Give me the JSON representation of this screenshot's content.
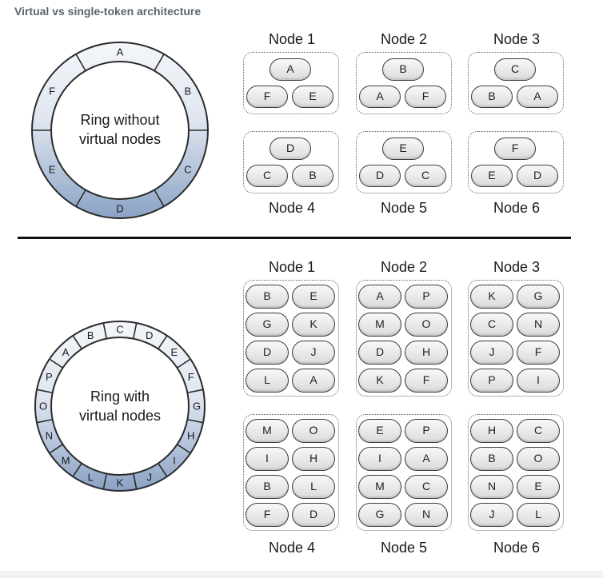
{
  "title": "Virtual vs single-token architecture",
  "top": {
    "ring": {
      "label_line1": "Ring without",
      "label_line2": "virtual nodes",
      "segments": [
        "A",
        "B",
        "C",
        "D",
        "E",
        "F"
      ]
    },
    "nodes": [
      {
        "label": "Node 1",
        "top": "A",
        "left": "F",
        "right": "E"
      },
      {
        "label": "Node 2",
        "top": "B",
        "left": "A",
        "right": "F"
      },
      {
        "label": "Node 3",
        "top": "C",
        "left": "B",
        "right": "A"
      },
      {
        "label": "Node 4",
        "top": "D",
        "left": "C",
        "right": "B"
      },
      {
        "label": "Node 5",
        "top": "E",
        "left": "D",
        "right": "C"
      },
      {
        "label": "Node 6",
        "top": "F",
        "left": "E",
        "right": "D"
      }
    ]
  },
  "bottom": {
    "ring": {
      "label_line1": "Ring with",
      "label_line2": "virtual nodes",
      "segments": [
        "A",
        "B",
        "C",
        "D",
        "E",
        "F",
        "G",
        "H",
        "I",
        "J",
        "K",
        "L",
        "M",
        "N",
        "O",
        "P"
      ]
    },
    "nodes": [
      {
        "label": "Node 1",
        "tokens": [
          [
            "B",
            "E"
          ],
          [
            "G",
            "K"
          ],
          [
            "D",
            "J"
          ],
          [
            "L",
            "A"
          ]
        ]
      },
      {
        "label": "Node 2",
        "tokens": [
          [
            "A",
            "P"
          ],
          [
            "M",
            "O"
          ],
          [
            "D",
            "H"
          ],
          [
            "K",
            "F"
          ]
        ]
      },
      {
        "label": "Node 3",
        "tokens": [
          [
            "K",
            "G"
          ],
          [
            "C",
            "N"
          ],
          [
            "J",
            "F"
          ],
          [
            "P",
            "I"
          ]
        ]
      },
      {
        "label": "Node 4",
        "tokens": [
          [
            "M",
            "O"
          ],
          [
            "I",
            "H"
          ],
          [
            "B",
            "L"
          ],
          [
            "F",
            "D"
          ]
        ]
      },
      {
        "label": "Node 5",
        "tokens": [
          [
            "E",
            "P"
          ],
          [
            "I",
            "A"
          ],
          [
            "M",
            "C"
          ],
          [
            "G",
            "N"
          ]
        ]
      },
      {
        "label": "Node 6",
        "tokens": [
          [
            "H",
            "C"
          ],
          [
            "B",
            "O"
          ],
          [
            "N",
            "E"
          ],
          [
            "J",
            "L"
          ]
        ]
      }
    ]
  }
}
